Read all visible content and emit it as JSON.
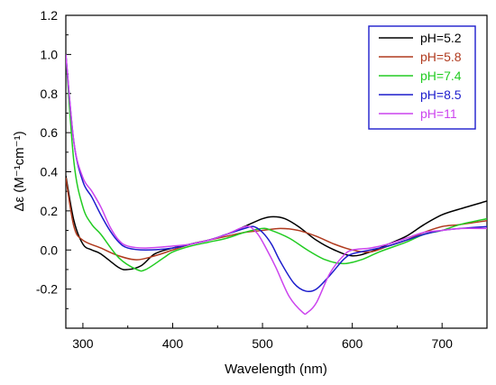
{
  "chart_data": {
    "type": "line",
    "xlabel": "Wavelength (nm)",
    "ylabel": "Δε (M⁻¹cm⁻¹)",
    "xlim": [
      281,
      750
    ],
    "ylim": [
      -0.4,
      1.2
    ],
    "x_ticks": [
      300,
      400,
      500,
      600,
      700
    ],
    "y_ticks": [
      -0.2,
      0.0,
      0.2,
      0.4,
      0.6,
      0.8,
      1.0,
      1.2
    ],
    "x_tick_labels": [
      "300",
      "400",
      "500",
      "600",
      "700"
    ],
    "y_tick_labels": [
      "-0.2",
      "0.0",
      "0.2",
      "0.4",
      "0.6",
      "0.8",
      "1.0",
      "1.2"
    ],
    "legend_position": "top-right",
    "series": [
      {
        "name": "pH=5.2",
        "color": "#000000",
        "points": [
          [
            281,
            0.38
          ],
          [
            290,
            0.15
          ],
          [
            300,
            0.03
          ],
          [
            310,
            0.0
          ],
          [
            320,
            -0.02
          ],
          [
            340,
            -0.09
          ],
          [
            350,
            -0.1
          ],
          [
            365,
            -0.08
          ],
          [
            380,
            -0.02
          ],
          [
            400,
            0.01
          ],
          [
            420,
            0.03
          ],
          [
            440,
            0.05
          ],
          [
            460,
            0.08
          ],
          [
            480,
            0.12
          ],
          [
            500,
            0.16
          ],
          [
            512,
            0.17
          ],
          [
            525,
            0.16
          ],
          [
            540,
            0.12
          ],
          [
            560,
            0.05
          ],
          [
            580,
            0.0
          ],
          [
            600,
            -0.03
          ],
          [
            620,
            -0.01
          ],
          [
            640,
            0.03
          ],
          [
            660,
            0.07
          ],
          [
            680,
            0.13
          ],
          [
            700,
            0.18
          ],
          [
            720,
            0.21
          ],
          [
            750,
            0.25
          ]
        ]
      },
      {
        "name": "pH=5.8",
        "color": "#b03a1e",
        "points": [
          [
            281,
            0.37
          ],
          [
            290,
            0.12
          ],
          [
            300,
            0.05
          ],
          [
            320,
            0.01
          ],
          [
            340,
            -0.03
          ],
          [
            360,
            -0.05
          ],
          [
            380,
            -0.03
          ],
          [
            400,
            0.0
          ],
          [
            420,
            0.03
          ],
          [
            440,
            0.05
          ],
          [
            460,
            0.07
          ],
          [
            480,
            0.09
          ],
          [
            500,
            0.1
          ],
          [
            520,
            0.11
          ],
          [
            540,
            0.1
          ],
          [
            560,
            0.07
          ],
          [
            580,
            0.03
          ],
          [
            600,
            0.0
          ],
          [
            620,
            -0.01
          ],
          [
            640,
            0.02
          ],
          [
            660,
            0.05
          ],
          [
            680,
            0.09
          ],
          [
            700,
            0.12
          ],
          [
            720,
            0.13
          ],
          [
            750,
            0.15
          ]
        ]
      },
      {
        "name": "pH=7.4",
        "color": "#22cc22",
        "points": [
          [
            281,
            1.0
          ],
          [
            290,
            0.45
          ],
          [
            300,
            0.22
          ],
          [
            310,
            0.13
          ],
          [
            320,
            0.08
          ],
          [
            340,
            -0.04
          ],
          [
            360,
            -0.1
          ],
          [
            370,
            -0.1
          ],
          [
            390,
            -0.04
          ],
          [
            400,
            -0.01
          ],
          [
            420,
            0.02
          ],
          [
            440,
            0.04
          ],
          [
            460,
            0.06
          ],
          [
            480,
            0.09
          ],
          [
            500,
            0.11
          ],
          [
            510,
            0.1
          ],
          [
            530,
            0.06
          ],
          [
            550,
            0.0
          ],
          [
            570,
            -0.05
          ],
          [
            590,
            -0.07
          ],
          [
            610,
            -0.05
          ],
          [
            630,
            -0.01
          ],
          [
            660,
            0.04
          ],
          [
            680,
            0.08
          ],
          [
            700,
            0.1
          ],
          [
            720,
            0.13
          ],
          [
            750,
            0.16
          ]
        ]
      },
      {
        "name": "pH=8.5",
        "color": "#1c1ccc",
        "points": [
          [
            281,
            1.0
          ],
          [
            290,
            0.55
          ],
          [
            300,
            0.35
          ],
          [
            310,
            0.27
          ],
          [
            320,
            0.18
          ],
          [
            330,
            0.1
          ],
          [
            340,
            0.04
          ],
          [
            350,
            0.01
          ],
          [
            370,
            0.0
          ],
          [
            400,
            0.01
          ],
          [
            420,
            0.03
          ],
          [
            440,
            0.05
          ],
          [
            460,
            0.08
          ],
          [
            480,
            0.11
          ],
          [
            490,
            0.12
          ],
          [
            500,
            0.09
          ],
          [
            510,
            0.03
          ],
          [
            520,
            -0.06
          ],
          [
            535,
            -0.17
          ],
          [
            548,
            -0.21
          ],
          [
            560,
            -0.2
          ],
          [
            575,
            -0.13
          ],
          [
            590,
            -0.05
          ],
          [
            600,
            -0.02
          ],
          [
            620,
            0.0
          ],
          [
            640,
            0.02
          ],
          [
            660,
            0.05
          ],
          [
            680,
            0.08
          ],
          [
            700,
            0.1
          ],
          [
            720,
            0.11
          ],
          [
            750,
            0.12
          ]
        ]
      },
      {
        "name": "pH=11",
        "color": "#cc44ee",
        "points": [
          [
            281,
            1.0
          ],
          [
            290,
            0.55
          ],
          [
            300,
            0.37
          ],
          [
            310,
            0.3
          ],
          [
            320,
            0.22
          ],
          [
            330,
            0.12
          ],
          [
            340,
            0.05
          ],
          [
            350,
            0.02
          ],
          [
            370,
            0.01
          ],
          [
            400,
            0.02
          ],
          [
            420,
            0.03
          ],
          [
            440,
            0.05
          ],
          [
            460,
            0.08
          ],
          [
            475,
            0.11
          ],
          [
            485,
            0.12
          ],
          [
            495,
            0.08
          ],
          [
            505,
            0.0
          ],
          [
            515,
            -0.09
          ],
          [
            530,
            -0.24
          ],
          [
            545,
            -0.32
          ],
          [
            550,
            -0.32
          ],
          [
            560,
            -0.27
          ],
          [
            575,
            -0.12
          ],
          [
            590,
            -0.03
          ],
          [
            600,
            0.0
          ],
          [
            620,
            0.01
          ],
          [
            640,
            0.03
          ],
          [
            660,
            0.06
          ],
          [
            680,
            0.09
          ],
          [
            700,
            0.1
          ],
          [
            720,
            0.11
          ],
          [
            750,
            0.11
          ]
        ]
      }
    ]
  }
}
